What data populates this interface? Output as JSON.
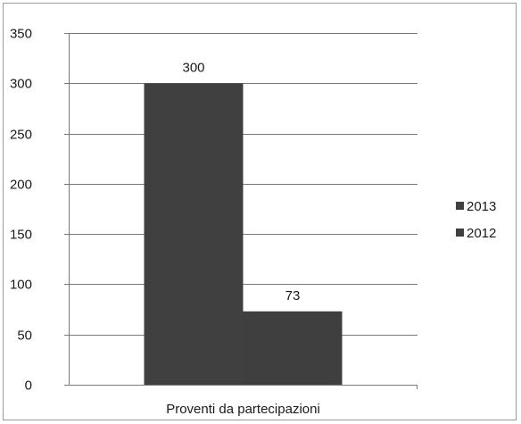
{
  "chart_data": {
    "type": "bar",
    "categories": [
      "Proventi da partecipazioni"
    ],
    "series": [
      {
        "name": "2013",
        "values": [
          300
        ],
        "color": "#404040"
      },
      {
        "name": "2012",
        "values": [
          73
        ],
        "color": "#3f3f3f"
      }
    ],
    "title": "",
    "xlabel": "",
    "ylabel": "",
    "ylim": [
      0,
      350
    ],
    "yticks": [
      0,
      50,
      100,
      150,
      200,
      250,
      300,
      350
    ],
    "grid": true,
    "legend_position": "right",
    "data_labels": [
      "300",
      "73"
    ]
  }
}
